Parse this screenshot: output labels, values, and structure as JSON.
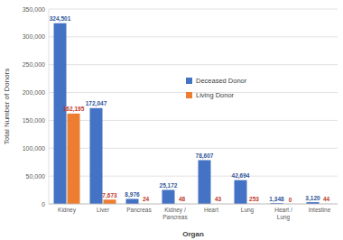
{
  "chart_data": {
    "type": "bar",
    "x_label": "Organ",
    "y_label": "Total Number of Donors",
    "categories": [
      "Kidney",
      "Liver",
      "Pancreas",
      "Kidney / Pancreas",
      "Heart",
      "Lung",
      "Heart / Lung",
      "Intestine"
    ],
    "series": [
      {
        "name": "Deceased Donor",
        "color": "#4472c4",
        "values": [
          324501,
          172047,
          8976,
          25172,
          78607,
          42694,
          1348,
          3120
        ],
        "value_labels": [
          "324,501",
          "172,047",
          "8,976",
          "25,172",
          "78,607",
          "42,694",
          "1,348",
          "3,120"
        ]
      },
      {
        "name": "Living Donor",
        "color": "#ed7d31",
        "values": [
          162195,
          7673,
          24,
          48,
          43,
          253,
          0,
          44
        ],
        "value_labels": [
          "162,195",
          "7,673",
          "24",
          "48",
          "43",
          "253",
          "0",
          "44"
        ]
      }
    ],
    "ylim": [
      0,
      350000
    ],
    "yticks": [
      0,
      {
        "value": 50000,
        "label": "50,000"
      },
      {
        "value": 100000,
        "label": "100,000"
      },
      {
        "value": 150000,
        "label": "150,000"
      },
      {
        "value": 200000,
        "label": "200,000"
      },
      {
        "value": 250000,
        "label": "250,000"
      },
      {
        "value": 300000,
        "label": "300,000"
      },
      {
        "value": 350000,
        "label": "350,000"
      }
    ],
    "grid": true,
    "legend": "center",
    "data_labels": true
  }
}
